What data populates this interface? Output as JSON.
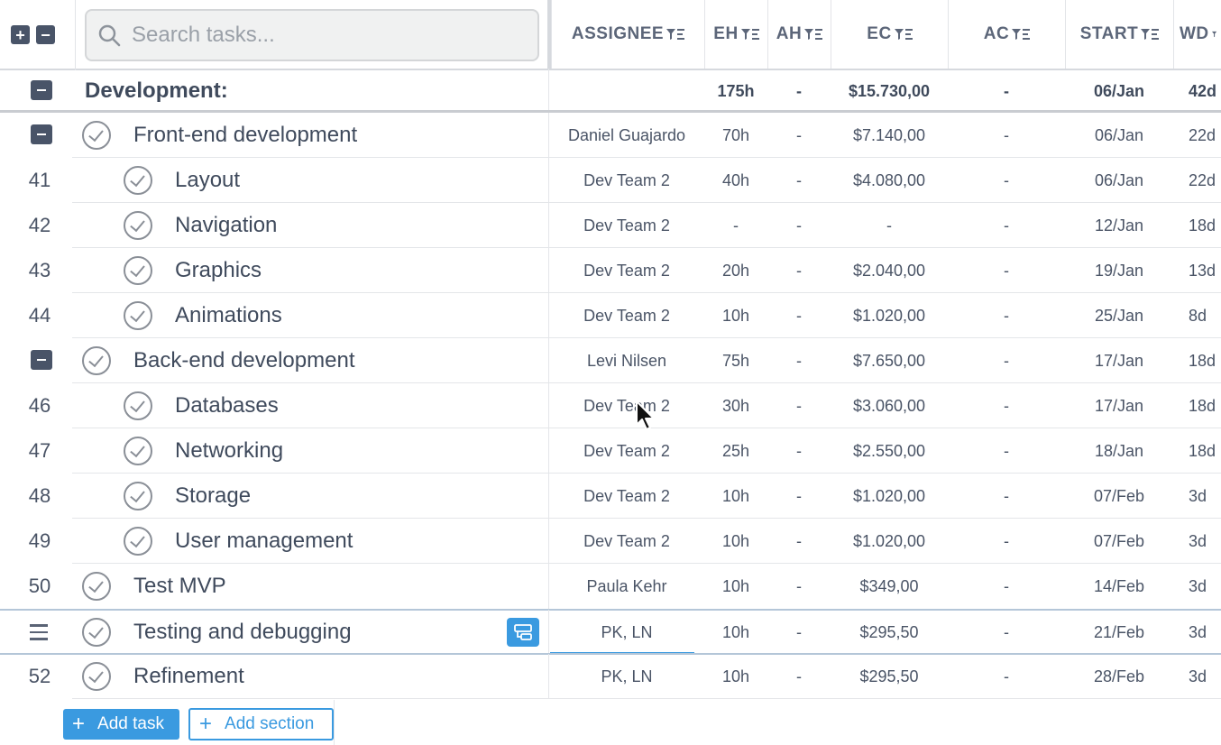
{
  "search": {
    "placeholder": "Search tasks..."
  },
  "header": {
    "columns": [
      "ASSIGNEE",
      "EH",
      "AH",
      "EC",
      "AC",
      "START",
      "WD"
    ]
  },
  "section": {
    "label": "Development:",
    "eh": "175h",
    "ah": "-",
    "ec": "$15.730,00",
    "ac": "-",
    "start": "06/Jan",
    "wd": "42d"
  },
  "rows": [
    {
      "num": "",
      "name": "Front-end development",
      "assignee": "Daniel Guajardo",
      "eh": "70h",
      "ah": "-",
      "ec": "$7.140,00",
      "ac": "-",
      "start": "06/Jan",
      "wd": "22d"
    },
    {
      "num": "41",
      "name": "Layout",
      "assignee": "Dev Team 2",
      "eh": "40h",
      "ah": "-",
      "ec": "$4.080,00",
      "ac": "-",
      "start": "06/Jan",
      "wd": "22d"
    },
    {
      "num": "42",
      "name": "Navigation",
      "assignee": "Dev Team 2",
      "eh": "-",
      "ah": "-",
      "ec": "-",
      "ac": "-",
      "start": "12/Jan",
      "wd": "18d"
    },
    {
      "num": "43",
      "name": "Graphics",
      "assignee": "Dev Team 2",
      "eh": "20h",
      "ah": "-",
      "ec": "$2.040,00",
      "ac": "-",
      "start": "19/Jan",
      "wd": "13d"
    },
    {
      "num": "44",
      "name": "Animations",
      "assignee": "Dev Team 2",
      "eh": "10h",
      "ah": "-",
      "ec": "$1.020,00",
      "ac": "-",
      "start": "25/Jan",
      "wd": "8d"
    },
    {
      "num": "",
      "name": "Back-end development",
      "assignee": "Levi Nilsen",
      "eh": "75h",
      "ah": "-",
      "ec": "$7.650,00",
      "ac": "-",
      "start": "17/Jan",
      "wd": "18d"
    },
    {
      "num": "46",
      "name": "Databases",
      "assignee": "Dev Team 2",
      "eh": "30h",
      "ah": "-",
      "ec": "$3.060,00",
      "ac": "-",
      "start": "17/Jan",
      "wd": "18d"
    },
    {
      "num": "47",
      "name": "Networking",
      "assignee": "Dev Team 2",
      "eh": "25h",
      "ah": "-",
      "ec": "$2.550,00",
      "ac": "-",
      "start": "18/Jan",
      "wd": "18d"
    },
    {
      "num": "48",
      "name": "Storage",
      "assignee": "Dev Team 2",
      "eh": "10h",
      "ah": "-",
      "ec": "$1.020,00",
      "ac": "-",
      "start": "07/Feb",
      "wd": "3d"
    },
    {
      "num": "49",
      "name": "User management",
      "assignee": "Dev Team 2",
      "eh": "10h",
      "ah": "-",
      "ec": "$1.020,00",
      "ac": "-",
      "start": "07/Feb",
      "wd": "3d"
    },
    {
      "num": "50",
      "name": "Test MVP",
      "assignee": "Paula Kehr",
      "eh": "10h",
      "ah": "-",
      "ec": "$349,00",
      "ac": "-",
      "start": "14/Feb",
      "wd": "3d"
    },
    {
      "num": "",
      "name": "Testing and debugging",
      "assignee": "PK, LN",
      "eh": "10h",
      "ah": "-",
      "ec": "$295,50",
      "ac": "-",
      "start": "21/Feb",
      "wd": "3d"
    },
    {
      "num": "52",
      "name": "Refinement",
      "assignee": "PK, LN",
      "eh": "10h",
      "ah": "-",
      "ec": "$295,50",
      "ac": "-",
      "start": "28/Feb",
      "wd": "3d"
    }
  ],
  "footer": {
    "add_task": "Add task",
    "add_section": "Add section"
  },
  "colors": {
    "accent": "#3a9ae0",
    "dark_button": "#495468",
    "text": "#4a5466"
  }
}
